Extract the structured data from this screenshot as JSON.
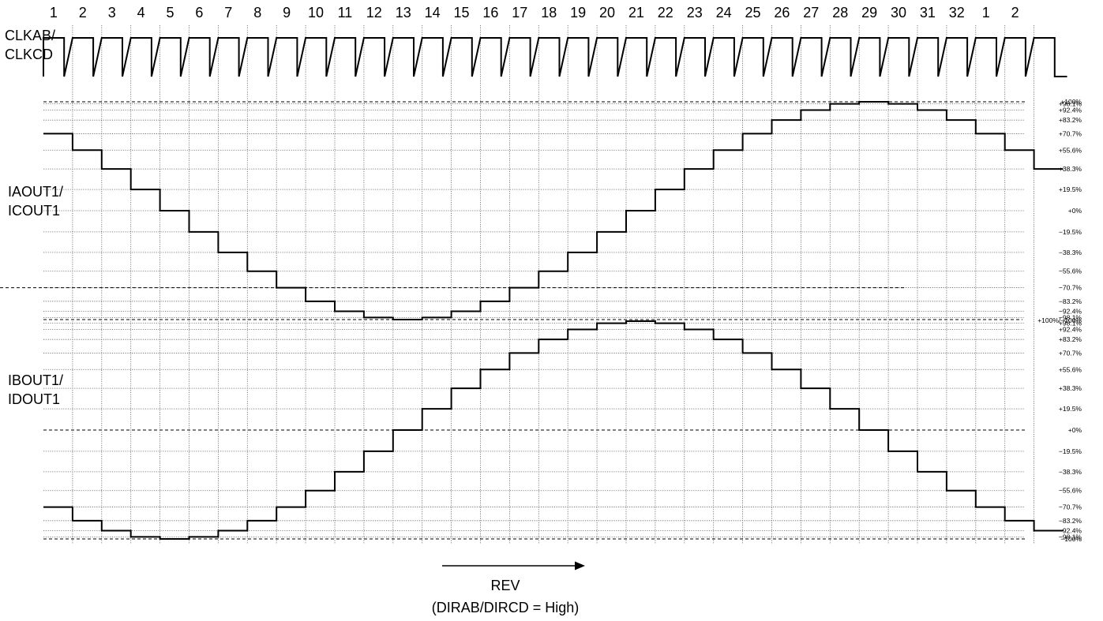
{
  "step_numbers": [
    "1",
    "2",
    "3",
    "4",
    "5",
    "6",
    "7",
    "8",
    "9",
    "10",
    "11",
    "12",
    "13",
    "14",
    "15",
    "16",
    "17",
    "18",
    "19",
    "20",
    "21",
    "22",
    "23",
    "24",
    "25",
    "26",
    "27",
    "28",
    "29",
    "30",
    "31",
    "32",
    "1",
    "2"
  ],
  "clock": {
    "label_line1": "CLKAB/",
    "label_line2": "CLKCD"
  },
  "waveform_a": {
    "label_line1": "IAOUT1/",
    "label_line2": "ICOUT1",
    "levels": [
      "+100%",
      "+98.1%",
      "+92.4%",
      "+83.2%",
      "+70.7%",
      "+55.6%",
      "+38.3%",
      "+19.5%",
      "+0%",
      "−19.5%",
      "−38.3%",
      "−55.6%",
      "−70.7%",
      "−83.2%",
      "−92.4%",
      "−98.1%"
    ],
    "shared_boundary_label": "+100%/−100%",
    "values": [
      70.7,
      55.6,
      38.3,
      19.5,
      0,
      -19.5,
      -38.3,
      -55.6,
      -70.7,
      -83.2,
      -92.4,
      -98.1,
      -100,
      -98.1,
      -92.4,
      -83.2,
      -70.7,
      -55.6,
      -38.3,
      -19.5,
      0,
      19.5,
      38.3,
      55.6,
      70.7,
      83.2,
      92.4,
      98.1,
      100,
      98.1,
      92.4,
      83.2,
      70.7,
      55.6,
      38.3
    ]
  },
  "waveform_b": {
    "label_line1": "IBOUT1/",
    "label_line2": "IDOUT1",
    "levels": [
      "+98.1%",
      "+92.4%",
      "+83.2%",
      "+70.7%",
      "+55.6%",
      "+38.3%",
      "+19.5%",
      "+0%",
      "−19.5%",
      "−38.3%",
      "−55.6%",
      "−70.7%",
      "−83.2%",
      "−92.4%",
      "−98.1%",
      "−100%"
    ],
    "values": [
      -70.7,
      -83.2,
      -92.4,
      -98.1,
      -100,
      -98.1,
      -92.4,
      -83.2,
      -70.7,
      -55.6,
      -38.3,
      -19.5,
      0,
      19.5,
      38.3,
      55.6,
      70.7,
      83.2,
      92.4,
      98.1,
      100,
      98.1,
      92.4,
      83.2,
      70.7,
      55.6,
      38.3,
      19.5,
      0,
      -19.5,
      -38.3,
      -55.6,
      -70.7,
      -83.2,
      -92.4
    ]
  },
  "direction": {
    "label": "REV",
    "condition": "(DIRAB/DIRCD = High)"
  }
}
